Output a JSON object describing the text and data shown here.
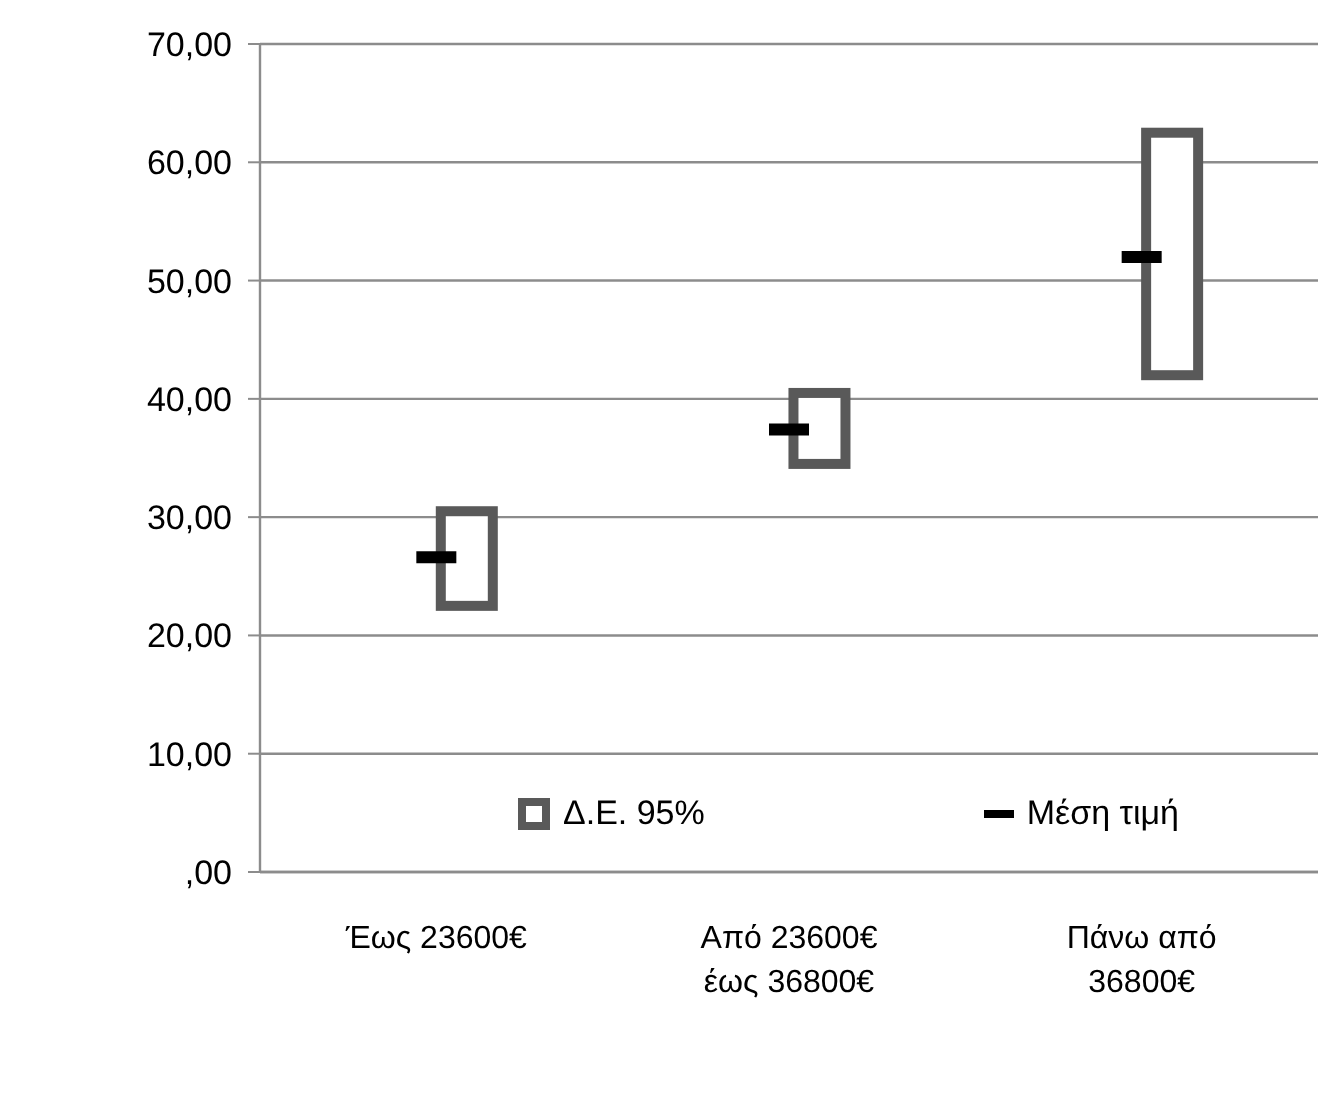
{
  "chart_data": {
    "type": "bar",
    "categories": [
      "Έως 23600€",
      "Από 23600€ έως 36800€",
      "Πάνω από 36800€"
    ],
    "series": [
      {
        "name": "Δ.Ε. 95%",
        "color": "#595959",
        "values": [
          8,
          6,
          20.5
        ],
        "base": [
          22.5,
          34.5,
          42
        ]
      },
      {
        "name": "Μέση τιμή",
        "type": "scatter",
        "color": "#000000",
        "values": [
          26.6,
          37.4,
          52
        ]
      }
    ],
    "ylim": [
      0,
      70
    ],
    "yticks": [
      {
        "value": 0,
        "label": ",00"
      },
      {
        "value": 10,
        "label": "10,00"
      },
      {
        "value": 20,
        "label": "20,00"
      },
      {
        "value": 30,
        "label": "30,00"
      },
      {
        "value": 40,
        "label": "40,00"
      },
      {
        "value": 50,
        "label": "50,00"
      },
      {
        "value": 60,
        "label": "60,00"
      },
      {
        "value": 70,
        "label": "70,00"
      }
    ],
    "grid": "y",
    "legend": "bottom"
  }
}
